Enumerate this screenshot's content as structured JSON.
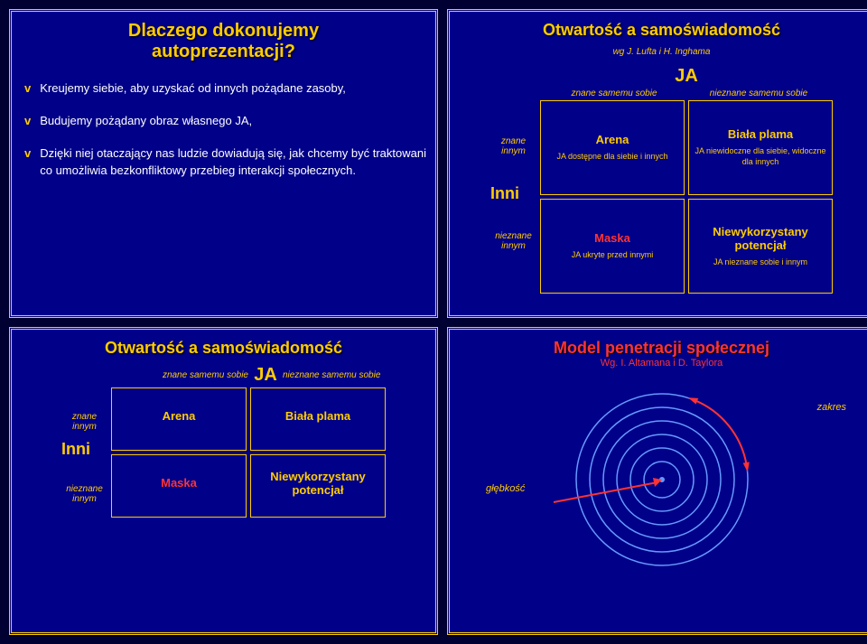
{
  "panel1": {
    "title_l1": "Dlaczego dokonujemy",
    "title_l2": "autoprezentacji?",
    "bullets": [
      "Kreujemy siebie, aby uzyskać od innych pożądane zasoby,",
      "Budujemy pożądany obraz własnego JA,",
      "Dzięki niej otaczający nas ludzie dowiadują się, jak chcemy być traktowani co umożliwia bezkonfliktowy przebieg interakcji społecznych."
    ]
  },
  "johari": {
    "title": "Otwartość a samoświadomość",
    "subtitle": "wg J. Lufta i H. Inghama",
    "ja": "JA",
    "inni": "Inni",
    "col_known": "znane samemu sobie",
    "col_unknown": "nieznane samemu sobie",
    "row_known": "znane innym",
    "row_unknown": "nieznane innym",
    "cells": {
      "arena": {
        "title": "Arena",
        "desc": "JA dostępne dla siebie i innych"
      },
      "blind": {
        "title": "Biała plama",
        "desc": "JA niewidoczne dla siebie, widoczne dla innych"
      },
      "mask": {
        "title": "Maska",
        "desc": "JA ukryte przed innymi",
        "title_color": "#ff3333"
      },
      "unk": {
        "title": "Niewykorzystany potencjał",
        "desc": "JA nieznane sobie i innym"
      }
    }
  },
  "radar": {
    "title": "Model penetracji społecznej",
    "subtitle": "Wg. I. Altamana i D. Taylora",
    "label_depth": "głębkość",
    "label_range": "zakres",
    "ring_color": "#6699ff",
    "bg_color": "#000088",
    "arrow_color": "#ff3333",
    "rings": [
      20,
      35,
      50,
      65,
      80,
      95
    ]
  },
  "colors": {
    "panel_bg": "#000088",
    "accent": "#ffcc00",
    "red": "#ff3333",
    "text": "#ffffff"
  }
}
